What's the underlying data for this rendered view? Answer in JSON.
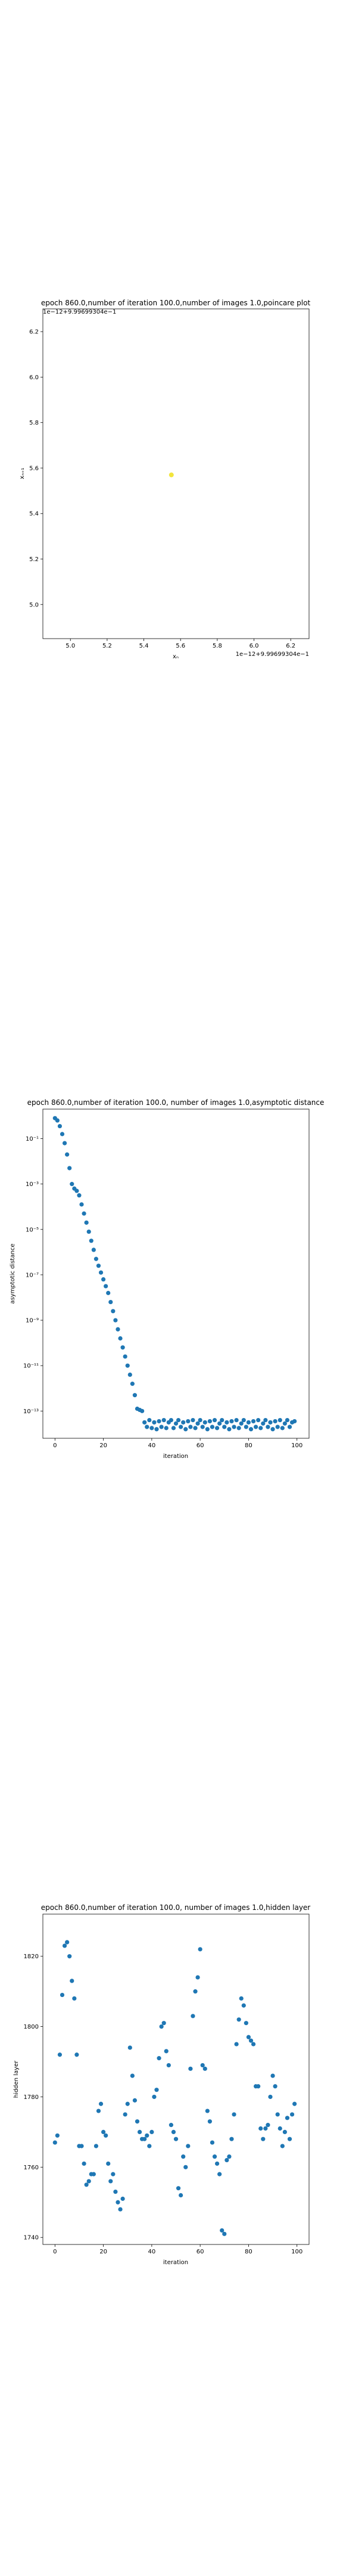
{
  "chart_data": [
    {
      "type": "scatter",
      "title": "epoch 860.0,number of iteration 100.0,number of images 1.0,poincare plot",
      "xlabel": "xₙ",
      "ylabel": "xₙ₊₁",
      "x_offset_text": "1e−12+9.99699304e−1",
      "y_offset_text": "1e−12+9.99699304e−1",
      "xlim": [
        4.85,
        6.3
      ],
      "ylim": [
        4.85,
        6.3
      ],
      "x_ticks": [
        "5.0",
        "5.2",
        "5.4",
        "5.6",
        "5.8",
        "6.0",
        "6.2"
      ],
      "y_ticks": [
        "5.0",
        "5.2",
        "5.4",
        "5.6",
        "5.8",
        "6.0",
        "6.2"
      ],
      "points": [
        [
          5.55,
          5.57
        ]
      ],
      "point_color": "#f2e53c",
      "grid": false
    },
    {
      "type": "scatter",
      "title": "epoch 860.0,number of iteration 100.0, number of images 1.0,asymptotic distance",
      "xlabel": "iteration",
      "ylabel": "asymptotic distance",
      "y_scale": "log",
      "xlim": [
        -5,
        105
      ],
      "x_ticks": [
        "0",
        "20",
        "40",
        "60",
        "80",
        "100"
      ],
      "y_ticks": [
        "10⁻¹",
        "10⁻³",
        "10⁻⁵",
        "10⁻⁷",
        "10⁻⁹",
        "10⁻¹¹",
        "10⁻¹³"
      ],
      "y_tick_exponents": [
        -1,
        -3,
        -5,
        -7,
        -9,
        -11,
        -13
      ],
      "ylim_exponent": [
        -14.2,
        0.3
      ],
      "x": [
        0,
        1,
        2,
        3,
        4,
        5,
        6,
        7,
        8,
        9,
        10,
        11,
        12,
        13,
        14,
        15,
        16,
        17,
        18,
        19,
        20,
        21,
        22,
        23,
        24,
        25,
        26,
        27,
        28,
        29,
        30,
        31,
        32,
        33,
        34,
        35,
        36,
        37,
        38,
        39,
        40,
        41,
        42,
        43,
        44,
        45,
        46,
        47,
        48,
        49,
        50,
        51,
        52,
        53,
        54,
        55,
        56,
        57,
        58,
        59,
        60,
        61,
        62,
        63,
        64,
        65,
        66,
        67,
        68,
        69,
        70,
        71,
        72,
        73,
        74,
        75,
        76,
        77,
        78,
        79,
        80,
        81,
        82,
        83,
        84,
        85,
        86,
        87,
        88,
        89,
        90,
        91,
        92,
        93,
        94,
        95,
        96,
        97,
        98,
        99
      ],
      "y_exponent": [
        -0.1,
        -0.2,
        -0.45,
        -0.8,
        -1.2,
        -1.7,
        -2.3,
        -3.0,
        -3.2,
        -3.3,
        -3.5,
        -3.9,
        -4.3,
        -4.7,
        -5.1,
        -5.5,
        -5.9,
        -6.3,
        -6.6,
        -6.9,
        -7.2,
        -7.5,
        -7.8,
        -8.2,
        -8.6,
        -9.0,
        -9.4,
        -9.8,
        -10.2,
        -10.6,
        -11.0,
        -11.4,
        -11.8,
        -12.3,
        -12.9,
        -12.95,
        -13.0,
        -13.5,
        -13.7,
        -13.4,
        -13.75,
        -13.5,
        -13.8,
        -13.45,
        -13.7,
        -13.4,
        -13.75,
        -13.5,
        -13.4,
        -13.75,
        -13.55,
        -13.4,
        -13.7,
        -13.5,
        -13.8,
        -13.45,
        -13.7,
        -13.4,
        -13.75,
        -13.55,
        -13.4,
        -13.7,
        -13.5,
        -13.8,
        -13.45,
        -13.7,
        -13.4,
        -13.75,
        -13.55,
        -13.4,
        -13.7,
        -13.5,
        -13.8,
        -13.45,
        -13.7,
        -13.4,
        -13.75,
        -13.55,
        -13.4,
        -13.7,
        -13.5,
        -13.8,
        -13.45,
        -13.7,
        -13.4,
        -13.75,
        -13.55,
        -13.4,
        -13.7,
        -13.5,
        -13.8,
        -13.45,
        -13.7,
        -13.4,
        -13.75,
        -13.55,
        -13.4,
        -13.7,
        -13.5,
        -13.45
      ],
      "point_color": "#1f77b4",
      "grid": false
    },
    {
      "type": "scatter",
      "title": "epoch 860.0,number of iteration 100.0, number of images 1.0,hidden layer",
      "xlabel": "iteration",
      "ylabel": "hidden layer",
      "xlim": [
        -5,
        105
      ],
      "ylim": [
        1738,
        1832
      ],
      "x_ticks": [
        "0",
        "20",
        "40",
        "60",
        "80",
        "100"
      ],
      "x_tick_values": [
        0,
        20,
        40,
        60,
        80,
        100
      ],
      "y_ticks": [
        "1740",
        "1760",
        "1780",
        "1800",
        "1820"
      ],
      "y_tick_values": [
        1740,
        1760,
        1780,
        1800,
        1820
      ],
      "x": [
        0,
        1,
        2,
        3,
        4,
        5,
        6,
        7,
        8,
        9,
        10,
        11,
        12,
        13,
        14,
        15,
        16,
        17,
        18,
        19,
        20,
        21,
        22,
        23,
        24,
        25,
        26,
        27,
        28,
        29,
        30,
        31,
        32,
        33,
        34,
        35,
        36,
        37,
        38,
        39,
        40,
        41,
        42,
        43,
        44,
        45,
        46,
        47,
        48,
        49,
        50,
        51,
        52,
        53,
        54,
        55,
        56,
        57,
        58,
        59,
        60,
        61,
        62,
        63,
        64,
        65,
        66,
        67,
        68,
        69,
        70,
        71,
        72,
        73,
        74,
        75,
        76,
        77,
        78,
        79,
        80,
        81,
        82,
        83,
        84,
        85,
        86,
        87,
        88,
        89,
        90,
        91,
        92,
        93,
        94,
        95,
        96,
        97,
        98,
        99
      ],
      "y": [
        1767,
        1769,
        1792,
        1809,
        1823,
        1824,
        1820,
        1813,
        1808,
        1792,
        1766,
        1766,
        1761,
        1755,
        1756,
        1758,
        1758,
        1766,
        1776,
        1778,
        1770,
        1769,
        1761,
        1756,
        1758,
        1753,
        1750,
        1748,
        1751,
        1775,
        1778,
        1794,
        1786,
        1779,
        1773,
        1770,
        1768,
        1768,
        1769,
        1766,
        1770,
        1780,
        1782,
        1791,
        1800,
        1801,
        1793,
        1789,
        1772,
        1770,
        1768,
        1754,
        1752,
        1763,
        1760,
        1766,
        1788,
        1803,
        1810,
        1814,
        1822,
        1789,
        1788,
        1776,
        1773,
        1767,
        1763,
        1761,
        1758,
        1742,
        1741,
        1762,
        1763,
        1768,
        1775,
        1795,
        1802,
        1808,
        1806,
        1801,
        1797,
        1796,
        1795,
        1783,
        1783,
        1771,
        1768,
        1771,
        1772,
        1780,
        1786,
        1783,
        1775,
        1771,
        1766,
        1770,
        1774,
        1768,
        1775,
        1778
      ],
      "point_color": "#1f77b4",
      "grid": false
    }
  ]
}
